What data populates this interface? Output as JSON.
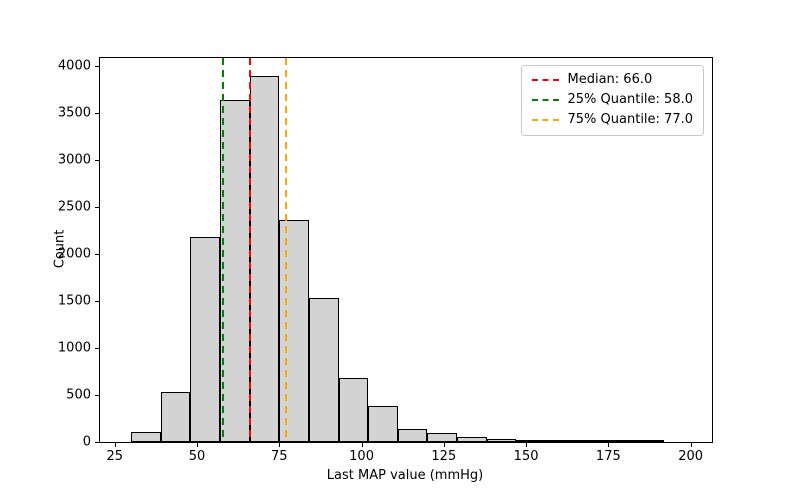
{
  "figure": {
    "xlabel": "Last MAP value (mmHg)",
    "ylabel": "Count"
  },
  "legend": {
    "items": [
      {
        "label": "Median: 66.0",
        "color": "#ff0000",
        "linestyle": "dashed"
      },
      {
        "label": "25% Quantile: 58.0",
        "color": "#008000",
        "linestyle": "dashed"
      },
      {
        "label": "75% Quantile: 77.0",
        "color": "#ffa500",
        "linestyle": "dashed"
      }
    ]
  },
  "chart_data": {
    "type": "bar",
    "subtype": "histogram",
    "title": "",
    "xlabel": "Last MAP value (mmHg)",
    "ylabel": "Count",
    "bin_edges": [
      30,
      39,
      48,
      57,
      66,
      75,
      84,
      93,
      102,
      111,
      120,
      129,
      138,
      147,
      156,
      165,
      174,
      183,
      192
    ],
    "counts": [
      110,
      530,
      2180,
      3640,
      3890,
      2360,
      1530,
      680,
      380,
      140,
      95,
      50,
      30,
      12,
      5,
      3,
      2,
      1
    ],
    "bar_fill": "#d3d3d3",
    "bar_edge": "#000000",
    "vlines": [
      {
        "x": 66.0,
        "color": "#ff0000",
        "label": "Median: 66.0"
      },
      {
        "x": 58.0,
        "color": "#008000",
        "label": "25% Quantile: 58.0"
      },
      {
        "x": 77.0,
        "color": "#ffa500",
        "label": "75% Quantile: 77.0"
      }
    ],
    "xticks": [
      25,
      50,
      75,
      100,
      125,
      150,
      175,
      200
    ],
    "yticks": [
      0,
      500,
      1000,
      1500,
      2000,
      2500,
      3000,
      3500,
      4000
    ],
    "xlim": [
      20.5,
      206.5
    ],
    "ylim": [
      0,
      4085
    ],
    "grid": false,
    "legend_position": "upper right"
  }
}
